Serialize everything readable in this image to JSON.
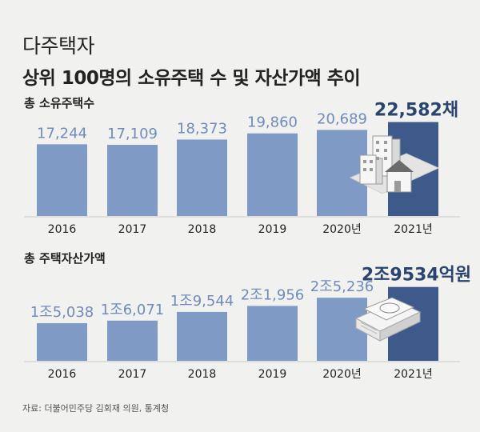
{
  "header": {
    "category": "다주택자",
    "title": "상위 100명의 소유주택 수 및 자산가액 추이"
  },
  "chart_data": [
    {
      "type": "bar",
      "title": "총 소유주택수",
      "categories": [
        "2016",
        "2017",
        "2018",
        "2019",
        "2020년",
        "2021년"
      ],
      "values": [
        17244,
        17109,
        18373,
        19860,
        20689,
        22582
      ],
      "value_labels": [
        "17,244",
        "17,109",
        "18,373",
        "19,860",
        "20,689",
        "22,582채"
      ],
      "highlight_index": 5,
      "ylim": [
        0,
        25000
      ]
    },
    {
      "type": "bar",
      "title": "총 주택자산가액",
      "categories": [
        "2016",
        "2017",
        "2018",
        "2019",
        "2020년",
        "2021년"
      ],
      "values": [
        15038,
        16071,
        19544,
        21956,
        25236,
        29534
      ],
      "value_labels": [
        "1조5,038",
        "1조6,071",
        "1조9,544",
        "2조1,956",
        "2조5,236",
        "2조9534억원"
      ],
      "highlight_index": 5,
      "ylim": [
        0,
        32000
      ]
    }
  ],
  "source": "자료: 더불어민주당 김회재 의원, 통계청",
  "colors": {
    "bar": "#7f9bc5",
    "highlight_bar": "#3d5a8a",
    "value_text": "#6f8cba",
    "highlight_text": "#2a4470"
  },
  "icons": [
    "apartment-buildings-icon",
    "money-stack-icon"
  ]
}
